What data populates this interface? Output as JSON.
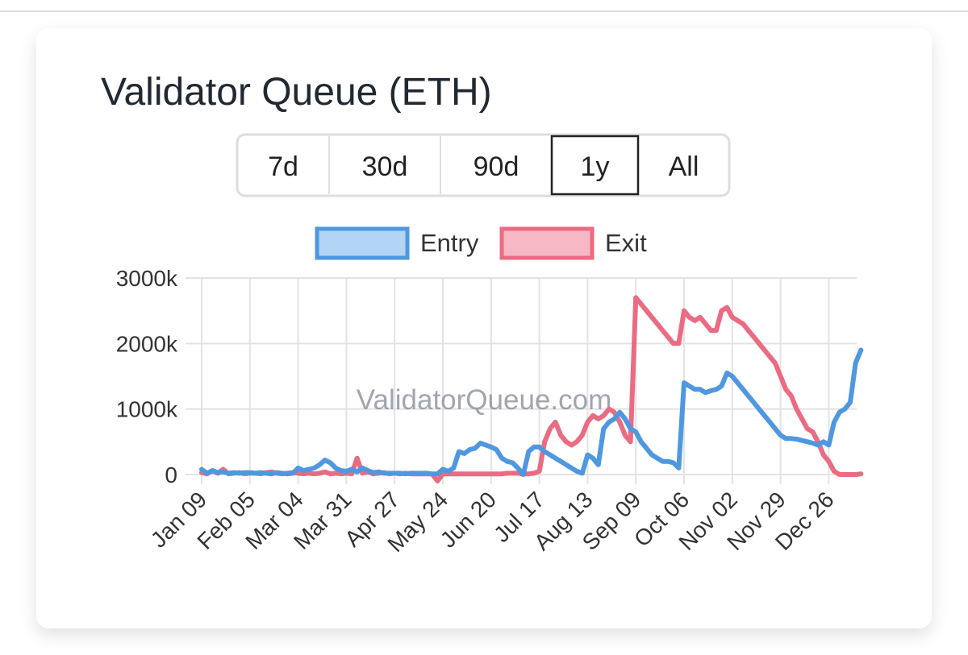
{
  "controls": {
    "buttons": [
      "7d",
      "30d",
      "90d",
      "1y",
      "All"
    ],
    "selected": 3
  },
  "chart_data": {
    "type": "line",
    "title": "Validator Queue (ETH)",
    "watermark": "ValidatorQueue.com",
    "categories": [
      "Jan 09",
      null,
      null,
      null,
      null,
      null,
      null,
      null,
      null,
      "Feb 05",
      null,
      null,
      null,
      null,
      null,
      null,
      null,
      null,
      "Mar 04",
      null,
      null,
      null,
      null,
      null,
      null,
      null,
      null,
      "Mar 31",
      null,
      null,
      null,
      null,
      null,
      null,
      null,
      null,
      "Apr 27",
      null,
      null,
      null,
      null,
      null,
      null,
      null,
      null,
      "May 24",
      null,
      null,
      null,
      null,
      null,
      null,
      null,
      null,
      "Jun 20",
      null,
      null,
      null,
      null,
      null,
      null,
      null,
      null,
      "Jul 17",
      null,
      null,
      null,
      null,
      null,
      null,
      null,
      null,
      "Aug 13",
      null,
      null,
      null,
      null,
      null,
      null,
      null,
      null,
      "Sep 09",
      null,
      null,
      null,
      null,
      null,
      null,
      null,
      null,
      "Oct 06",
      null,
      null,
      null,
      null,
      null,
      null,
      null,
      null,
      "Nov 02",
      null,
      null,
      null,
      null,
      null,
      null,
      null,
      null,
      "Nov 29",
      null,
      null,
      null,
      null,
      null,
      null,
      null,
      null,
      "Dec 26",
      null,
      null,
      null,
      null,
      null,
      null
    ],
    "series": [
      {
        "name": "Entry",
        "color": "#4f98e0",
        "fill": "#b3d4f5",
        "values": [
          80,
          20,
          60,
          30,
          40,
          20,
          30,
          20,
          30,
          30,
          20,
          30,
          20,
          10,
          30,
          20,
          10,
          20,
          100,
          60,
          80,
          100,
          150,
          220,
          180,
          100,
          60,
          50,
          80,
          40,
          100,
          60,
          30,
          40,
          20,
          20,
          20,
          20,
          10,
          20,
          20,
          20,
          20,
          10,
          10,
          80,
          50,
          100,
          350,
          320,
          380,
          400,
          480,
          450,
          420,
          380,
          250,
          200,
          180,
          100,
          0,
          350,
          420,
          420,
          350,
          300,
          250,
          200,
          150,
          100,
          50,
          20,
          300,
          250,
          150,
          700,
          800,
          850,
          950,
          850,
          700,
          650,
          500,
          400,
          300,
          250,
          200,
          200,
          180,
          100,
          1400,
          1350,
          1300,
          1300,
          1250,
          1280,
          1300,
          1350,
          1550,
          1500,
          1400,
          1300,
          1200,
          1100,
          1000,
          900,
          800,
          700,
          600,
          550,
          550,
          540,
          520,
          500,
          480,
          450,
          500,
          450,
          800,
          950,
          1000,
          1100,
          1700,
          1900
        ]
      },
      {
        "name": "Exit",
        "color": "#ea6b82",
        "fill": "#f5b8c4",
        "values": [
          30,
          10,
          60,
          20,
          80,
          10,
          20,
          30,
          10,
          20,
          20,
          10,
          30,
          40,
          20,
          10,
          20,
          30,
          20,
          10,
          20,
          10,
          20,
          40,
          10,
          20,
          10,
          20,
          10,
          250,
          20,
          40,
          10,
          20,
          30,
          10,
          20,
          10,
          20,
          10,
          10,
          10,
          10,
          10,
          -100,
          10,
          10,
          10,
          10,
          10,
          10,
          10,
          10,
          10,
          10,
          10,
          10,
          20,
          20,
          20,
          10,
          10,
          20,
          50,
          500,
          700,
          800,
          600,
          500,
          450,
          500,
          600,
          800,
          900,
          850,
          900,
          1000,
          950,
          800,
          600,
          500,
          2700,
          2600,
          2500,
          2400,
          2300,
          2200,
          2100,
          2000,
          2000,
          2500,
          2400,
          2350,
          2400,
          2300,
          2200,
          2200,
          2500,
          2550,
          2400,
          2350,
          2300,
          2200,
          2100,
          2000,
          1900,
          1800,
          1700,
          1500,
          1300,
          1200,
          1000,
          850,
          700,
          650,
          500,
          300,
          200,
          50,
          0,
          0,
          0,
          0,
          10
        ]
      }
    ],
    "ylim": [
      -100,
      3000
    ],
    "yticks": [
      0,
      {
        "value": 1000,
        "label": "1000k"
      },
      {
        "value": 2000,
        "label": "2000k"
      },
      {
        "value": 3000,
        "label": "3000k"
      }
    ],
    "grid": true
  }
}
